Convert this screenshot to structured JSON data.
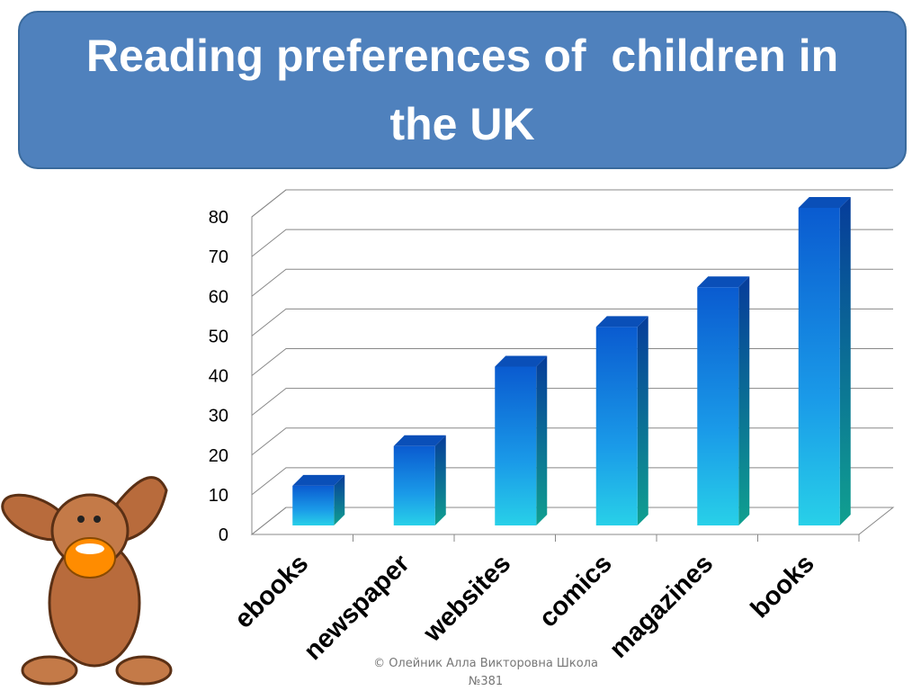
{
  "chart_data": {
    "type": "bar3d",
    "title": "Reading preferences of  children in  the UK",
    "categories": [
      "ebooks",
      "newspaper",
      "websites",
      "comics",
      "magazines",
      "books"
    ],
    "values": [
      10,
      20,
      40,
      50,
      60,
      80
    ],
    "color": "#1a7fe0",
    "ylim": [
      0,
      80
    ],
    "yticks": [
      0,
      10,
      20,
      30,
      40,
      50,
      60,
      70,
      80
    ],
    "grid": true
  },
  "footer": "© Олейник Алла Викторовна Школа №381"
}
